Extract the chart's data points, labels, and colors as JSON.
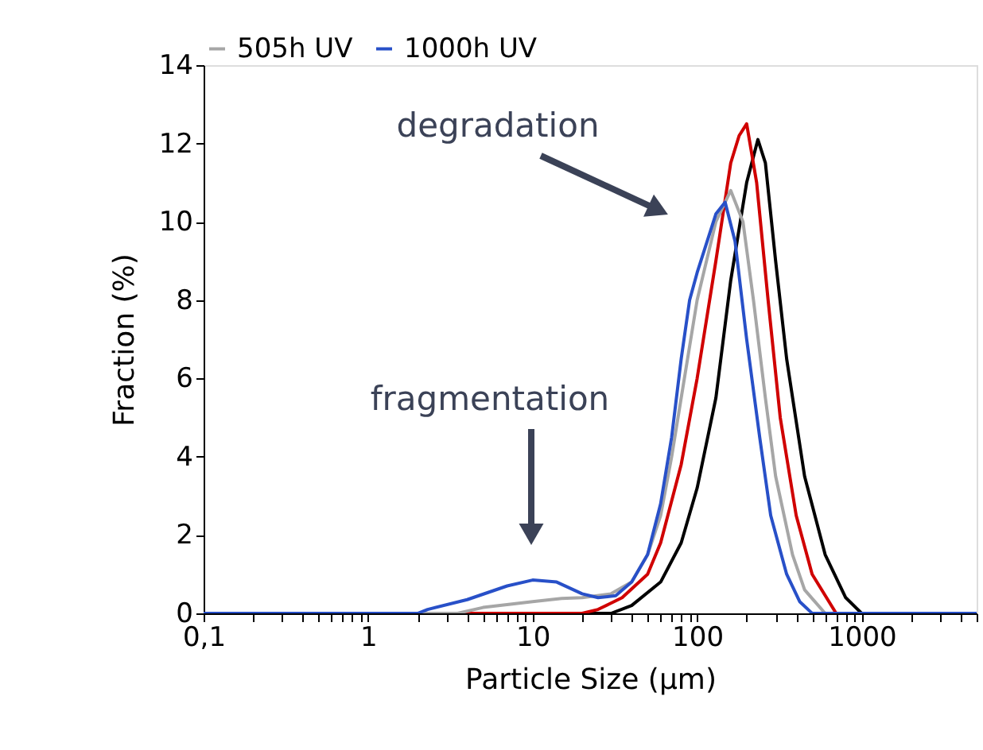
{
  "chart_data": {
    "type": "line",
    "xlabel": "Particle Size (µm)",
    "ylabel": "Fraction (%)",
    "log": "x",
    "grid": false,
    "legend": "top",
    "marker": "none",
    "line_style": "solid",
    "xlim": [
      0.1,
      5000
    ],
    "ylim": [
      0,
      14
    ],
    "yticks": [
      0,
      2,
      4,
      6,
      8,
      10,
      12,
      14
    ],
    "xticks": [
      {
        "value": 0.1,
        "label": "0,1"
      },
      {
        "value": 0.2,
        "label": null
      },
      {
        "value": 0.3,
        "label": null
      },
      {
        "value": 0.4,
        "label": null
      },
      {
        "value": 0.5,
        "label": null
      },
      {
        "value": 0.6,
        "label": null
      },
      {
        "value": 0.7,
        "label": null
      },
      {
        "value": 0.8,
        "label": null
      },
      {
        "value": 0.9,
        "label": null
      },
      1,
      {
        "value": 2,
        "label": null
      },
      {
        "value": 3,
        "label": null
      },
      {
        "value": 4,
        "label": null
      },
      {
        "value": 5,
        "label": null
      },
      {
        "value": 6,
        "label": null
      },
      {
        "value": 7,
        "label": null
      },
      {
        "value": 8,
        "label": null
      },
      {
        "value": 9,
        "label": null
      },
      10,
      {
        "value": 20,
        "label": null
      },
      {
        "value": 30,
        "label": null
      },
      {
        "value": 40,
        "label": null
      },
      {
        "value": 50,
        "label": null
      },
      {
        "value": 60,
        "label": null
      },
      {
        "value": 70,
        "label": null
      },
      {
        "value": 80,
        "label": null
      },
      {
        "value": 90,
        "label": null
      },
      100,
      {
        "value": 200,
        "label": null
      },
      {
        "value": 300,
        "label": null
      },
      {
        "value": 400,
        "label": null
      },
      {
        "value": 500,
        "label": null
      },
      {
        "value": 600,
        "label": null
      },
      {
        "value": 700,
        "label": null
      },
      {
        "value": 800,
        "label": null
      },
      {
        "value": 900,
        "label": null
      },
      1000,
      {
        "value": 2000,
        "label": null
      },
      {
        "value": 3000,
        "label": null
      },
      {
        "value": 4000,
        "label": null
      },
      {
        "value": 5000,
        "label": null
      }
    ],
    "series": [
      {
        "color": "#000000",
        "x": [
          0.1,
          30,
          40,
          60,
          80,
          100,
          130,
          160,
          200,
          234,
          260,
          300,
          350,
          450,
          600,
          800,
          1000,
          5000
        ],
        "values": [
          0,
          0,
          0.2,
          0.8,
          1.8,
          3.2,
          5.5,
          8.5,
          11,
          12.1,
          11.5,
          9,
          6.5,
          3.5,
          1.5,
          0.4,
          0,
          0
        ]
      },
      {
        "color": "#d00000",
        "x": [
          0.1,
          20,
          25,
          35,
          50,
          60,
          80,
          100,
          130,
          160,
          180,
          200,
          230,
          270,
          320,
          400,
          500,
          700,
          5000
        ],
        "values": [
          0,
          0,
          0.1,
          0.4,
          1,
          1.8,
          3.8,
          6,
          9,
          11.5,
          12.2,
          12.5,
          11,
          8,
          5,
          2.5,
          1,
          0,
          0
        ]
      },
      {
        "name": "505h UV",
        "color": "#a6a6a6",
        "x": [
          0.1,
          3.5,
          5,
          10,
          15,
          20,
          30,
          40,
          50,
          60,
          70,
          80,
          100,
          130,
          160,
          190,
          220,
          260,
          300,
          380,
          450,
          600,
          5000
        ],
        "values": [
          0,
          0,
          0.15,
          0.3,
          0.38,
          0.4,
          0.5,
          0.8,
          1.5,
          2.5,
          4,
          5.5,
          8,
          10,
          10.8,
          10,
          8,
          5.5,
          3.5,
          1.5,
          0.6,
          0,
          0
        ]
      },
      {
        "name": "1000h UV",
        "color": "#2850c8",
        "x": [
          0.1,
          2,
          2.3,
          4,
          7,
          10,
          14,
          20,
          25,
          32,
          40,
          50,
          60,
          70,
          80,
          90,
          100,
          130,
          148,
          170,
          200,
          240,
          280,
          350,
          420,
          500,
          5000
        ],
        "values": [
          0,
          0,
          0.1,
          0.35,
          0.7,
          0.85,
          0.8,
          0.5,
          0.4,
          0.45,
          0.8,
          1.5,
          2.8,
          4.5,
          6.5,
          8,
          8.7,
          10.2,
          10.5,
          9.5,
          7,
          4.5,
          2.5,
          1,
          0.3,
          0,
          0
        ]
      }
    ],
    "annotations": [
      "degradation",
      "fragmentation"
    ]
  }
}
